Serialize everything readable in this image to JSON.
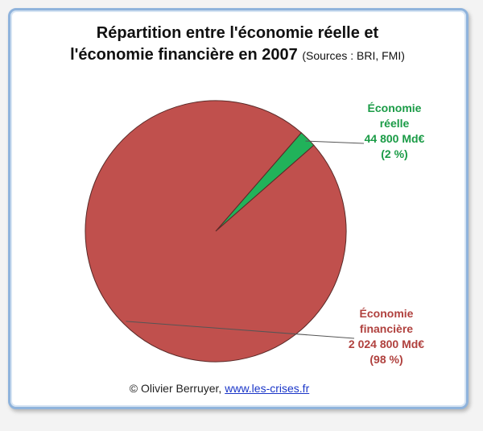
{
  "chart_data": {
    "type": "pie",
    "title_lines": [
      "Répartition entre l'économie réelle et",
      "l'économie financière en 2007"
    ],
    "subtitle": "(Sources : BRI, FMI)",
    "categories": [
      "Économie réelle",
      "Économie financière"
    ],
    "values": [
      44800,
      2024800
    ],
    "value_labels": [
      "44 800 Md€",
      "2 024 800 Md€"
    ],
    "share_labels": [
      "(2 %)",
      "(98 %)"
    ],
    "colors": [
      "#21b25a",
      "#c0504d"
    ],
    "label_colors": [
      "#1a9b46",
      "#b0413e"
    ],
    "credit": "© Olivier Berruyer,",
    "link": "www.les-crises.fr"
  }
}
